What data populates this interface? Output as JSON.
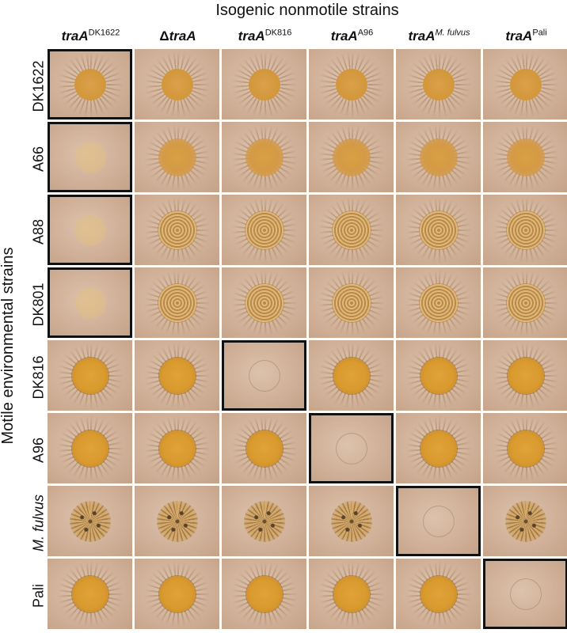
{
  "figure": {
    "top_title": "Isogenic nonmotile strains",
    "side_title": "Motile environmental strains"
  },
  "columns": [
    {
      "base": "traA",
      "prefix": "",
      "sup": "DK1622",
      "sup_italic": false
    },
    {
      "base": "traA",
      "prefix": "Δ",
      "sup": "",
      "sup_italic": false
    },
    {
      "base": "traA",
      "prefix": "",
      "sup": "DK816",
      "sup_italic": false
    },
    {
      "base": "traA",
      "prefix": "",
      "sup": "A96",
      "sup_italic": false
    },
    {
      "base": "traA",
      "prefix": "",
      "sup": "M. fulvus",
      "sup_italic": true
    },
    {
      "base": "traA",
      "prefix": "",
      "sup": "Pali",
      "sup_italic": false
    }
  ],
  "rows": [
    {
      "label": "DK1622",
      "italic": false,
      "control_col": 0,
      "types": [
        "ring",
        "ring",
        "ring",
        "ring",
        "ring",
        "ring"
      ]
    },
    {
      "label": "A66",
      "italic": false,
      "control_col": 0,
      "types": [
        "faint",
        "spread",
        "spread",
        "spread",
        "spread",
        "spread"
      ]
    },
    {
      "label": "A88",
      "italic": false,
      "control_col": 0,
      "types": [
        "faint",
        "wrinkle",
        "wrinkle",
        "wrinkle",
        "wrinkle",
        "wrinkle"
      ]
    },
    {
      "label": "DK801",
      "italic": false,
      "control_col": 0,
      "types": [
        "faint",
        "wrinkle",
        "wrinkle",
        "wrinkle",
        "wrinkle",
        "wrinkle"
      ]
    },
    {
      "label": "DK816",
      "italic": false,
      "control_col": 2,
      "types": [
        "solid",
        "solid",
        "ghost",
        "solid",
        "solid",
        "solid"
      ]
    },
    {
      "label": "A96",
      "italic": false,
      "control_col": 3,
      "types": [
        "solid",
        "solid",
        "solid",
        "ghost",
        "solid",
        "solid"
      ]
    },
    {
      "label": "M. fulvus",
      "italic": true,
      "control_col": 4,
      "types": [
        "spotty",
        "spotty",
        "spotty",
        "spotty",
        "ghost",
        "spotty"
      ]
    },
    {
      "label": "Pali",
      "italic": false,
      "control_col": 5,
      "types": [
        "solid",
        "solid",
        "solid",
        "solid",
        "solid",
        "ghost"
      ]
    }
  ],
  "colors": {
    "plate": "#cfaf96",
    "colony": "#d99a2e",
    "control_border": "#111111"
  }
}
